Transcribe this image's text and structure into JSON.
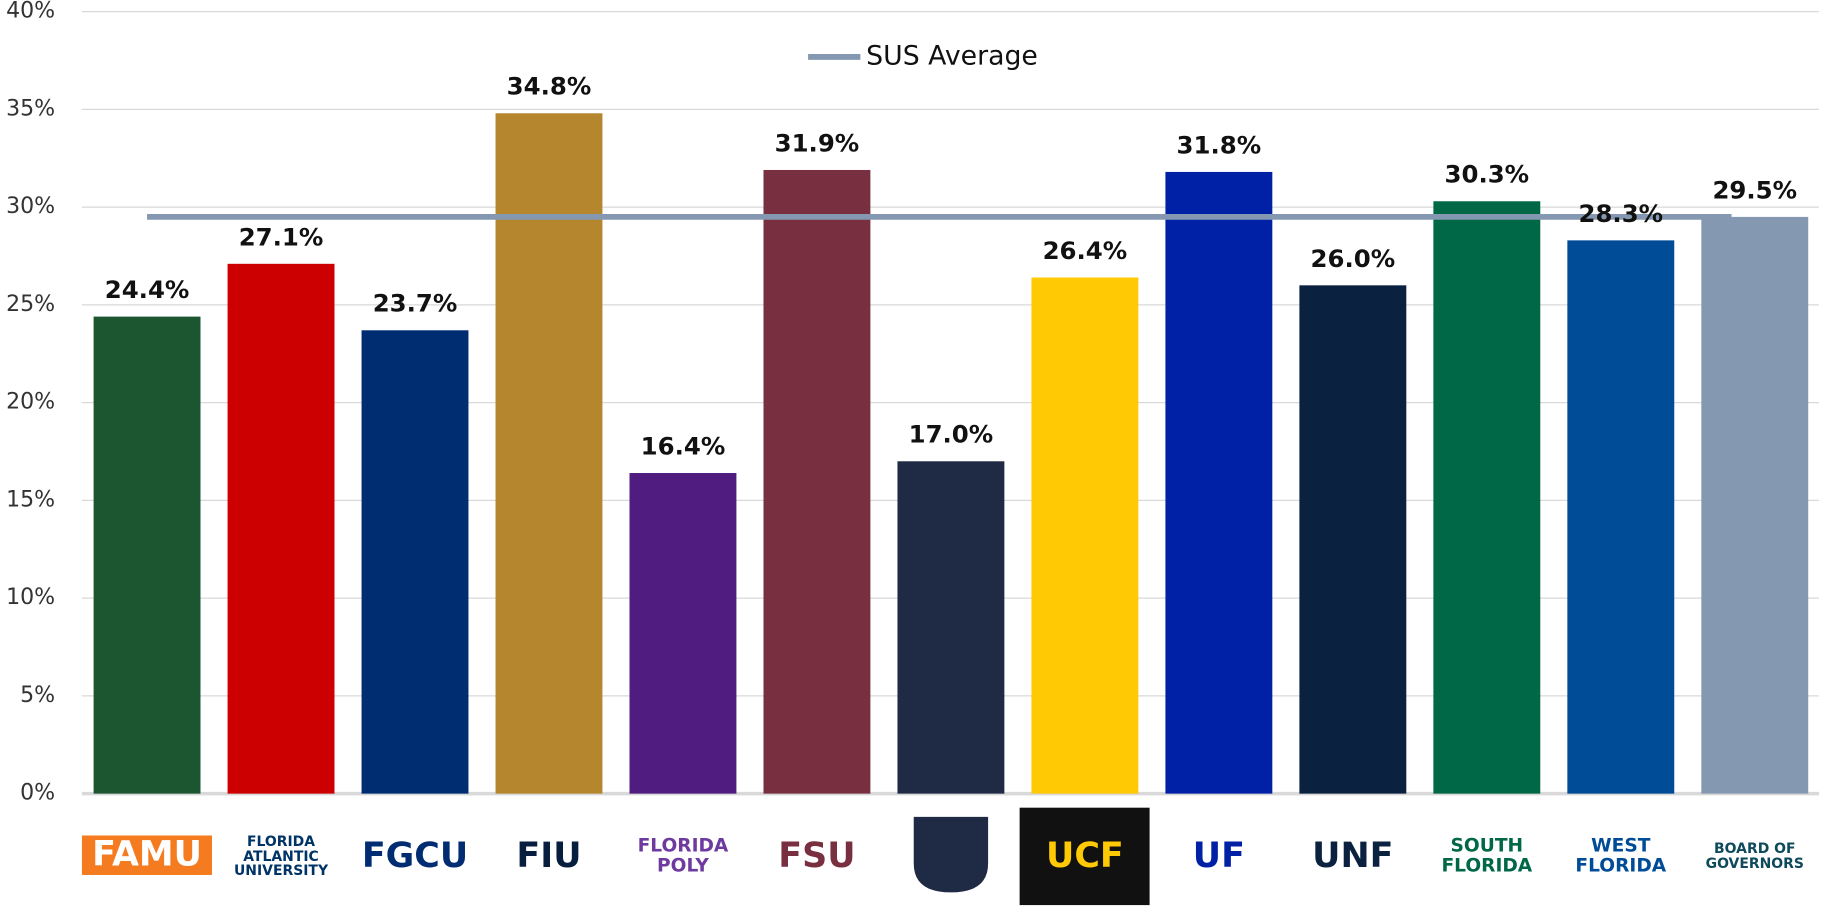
{
  "chart_data": {
    "type": "bar",
    "categories": [
      "FAMU",
      "FLORIDA ATLANTIC UNIVERSITY",
      "FGCU",
      "FIU",
      "FLORIDA POLY",
      "FSU",
      null,
      "UCF",
      "UF",
      "UNF",
      "SOUTH FLORIDA",
      "WEST FLORIDA",
      "BOARD OF GOVERNORS"
    ],
    "values": [
      24.4,
      27.1,
      23.7,
      34.8,
      16.4,
      31.9,
      17.0,
      26.4,
      31.8,
      26.0,
      30.3,
      28.3,
      29.5
    ],
    "value_labels": [
      "24.4%",
      "27.1%",
      "23.7%",
      "34.8%",
      "16.4%",
      "31.9%",
      "17.0%",
      "26.4%",
      "31.8%",
      "26.0%",
      "30.3%",
      "28.3%",
      "29.5%"
    ],
    "colors": [
      "#1c5631",
      "#cc0000",
      "#002d72",
      "#b5862e",
      "#501c80",
      "#782f40",
      "#1f2a44",
      "#ffc904",
      "#0021a5",
      "#0a223f",
      "#006747",
      "#004c97",
      "#8499b1"
    ],
    "logo_colors": [
      "#f47b20",
      "#003366",
      "#002d72",
      "#081e3f",
      "#6e3aa0",
      "#782f40",
      "#1f2a44",
      "#111111",
      "#0021a5",
      "#0a223f",
      "#006747",
      "#004c97",
      "#0e4a5c"
    ],
    "lines": [
      {
        "name": "SUS Average",
        "color": "#8499b1",
        "value": 29.5
      }
    ],
    "ylim": [
      0,
      40
    ],
    "yticks": [
      {
        "value": 0,
        "label": "0%"
      },
      {
        "value": 5,
        "label": "5%"
      },
      {
        "value": 10,
        "label": "10%"
      },
      {
        "value": 15,
        "label": "15%"
      },
      {
        "value": 20,
        "label": "20%"
      },
      {
        "value": 25,
        "label": "25%"
      },
      {
        "value": 30,
        "label": "30%"
      },
      {
        "value": 35,
        "label": "35%"
      },
      {
        "value": 40,
        "label": "40%"
      }
    ],
    "grid": true
  }
}
